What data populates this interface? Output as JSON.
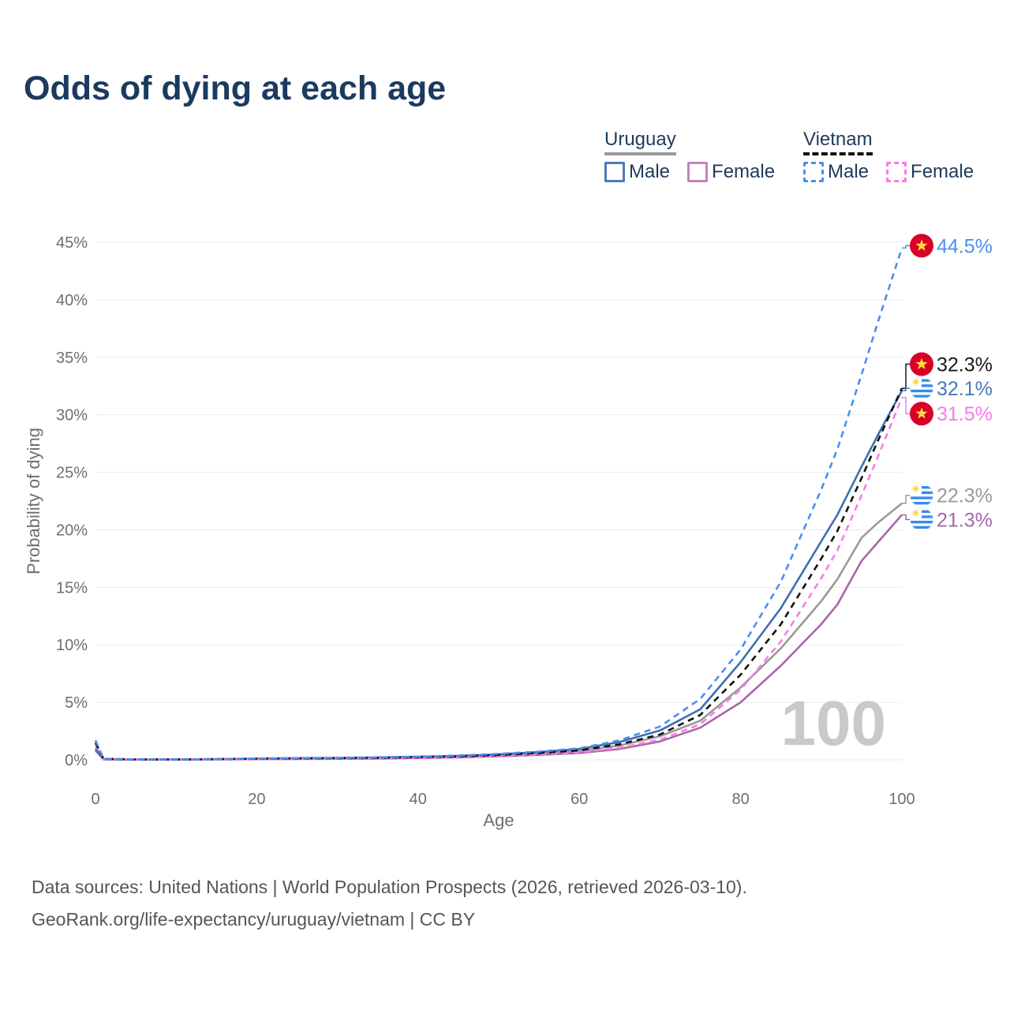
{
  "title": "Odds of dying at each age",
  "legend": {
    "groups": [
      {
        "id": "uruguay",
        "label": "Uruguay",
        "line_style": "solid",
        "line_color": "#999999",
        "items": [
          {
            "id": "uy_male",
            "label": "Male",
            "color": "#4d79bb",
            "dashed": false
          },
          {
            "id": "uy_female",
            "label": "Female",
            "color": "#c183bd",
            "dashed": false
          }
        ]
      },
      {
        "id": "vietnam",
        "label": "Vietnam",
        "line_style": "dashed",
        "line_color": "#111111",
        "items": [
          {
            "id": "vn_male",
            "label": "Male",
            "color": "#4a8ff0",
            "dashed": true
          },
          {
            "id": "vn_female",
            "label": "Female",
            "color": "#fb7be8",
            "dashed": true
          }
        ]
      }
    ]
  },
  "chart_data": {
    "type": "line",
    "title": "Odds of dying at each age",
    "xlabel": "Age",
    "ylabel": "Probability of dying",
    "xlim": [
      0,
      100
    ],
    "ylim": [
      0,
      45
    ],
    "grid": "horizontal",
    "x_ticks": [
      0,
      20,
      40,
      60,
      80,
      100
    ],
    "x_tick_labels": [
      "0",
      "20",
      "40",
      "60",
      "80",
      "100"
    ],
    "y_ticks": [
      0,
      5,
      10,
      15,
      20,
      25,
      30,
      35,
      40,
      45
    ],
    "y_tick_labels": [
      "0%",
      "5%",
      "10%",
      "15%",
      "20%",
      "25%",
      "30%",
      "35%",
      "40%",
      "45%"
    ],
    "watermark": "100",
    "x": [
      0,
      1,
      5,
      10,
      15,
      20,
      25,
      30,
      35,
      40,
      45,
      50,
      55,
      60,
      65,
      70,
      75,
      80,
      85,
      90,
      92,
      95,
      97,
      100
    ],
    "series": [
      {
        "name": "Uruguay",
        "id": "uy_both",
        "color": "#9a9a9a",
        "dash": false,
        "values": [
          0.9,
          0.05,
          0.025,
          0.025,
          0.055,
          0.09,
          0.12,
          0.14,
          0.17,
          0.22,
          0.29,
          0.4,
          0.56,
          0.78,
          1.25,
          2.05,
          3.4,
          6.3,
          9.7,
          13.8,
          15.7,
          19.3,
          20.6,
          22.3
        ]
      },
      {
        "name": "Uruguay Female",
        "id": "uy_female",
        "color": "#a668a8",
        "dash": false,
        "values": [
          0.8,
          0.05,
          0.02,
          0.02,
          0.035,
          0.055,
          0.075,
          0.09,
          0.12,
          0.16,
          0.21,
          0.3,
          0.43,
          0.6,
          0.95,
          1.6,
          2.8,
          5.0,
          8.2,
          11.8,
          13.5,
          17.3,
          18.9,
          21.3
        ]
      },
      {
        "name": "Uruguay Male",
        "id": "uy_male",
        "color": "#3e6fb4",
        "dash": false,
        "values": [
          1.0,
          0.06,
          0.03,
          0.03,
          0.07,
          0.11,
          0.15,
          0.17,
          0.21,
          0.27,
          0.35,
          0.48,
          0.68,
          0.95,
          1.55,
          2.55,
          4.4,
          8.5,
          13.2,
          19.0,
          21.3,
          25.5,
          28.2,
          32.1
        ]
      },
      {
        "name": "Vietnam Female",
        "id": "vn_female",
        "color": "#fb7be8",
        "dash": true,
        "values": [
          1.3,
          0.08,
          0.03,
          0.02,
          0.04,
          0.06,
          0.08,
          0.1,
          0.13,
          0.17,
          0.23,
          0.33,
          0.47,
          0.65,
          1.05,
          1.75,
          3.1,
          6.1,
          10.3,
          15.8,
          18.2,
          23.0,
          26.3,
          31.5
        ]
      },
      {
        "name": "Vietnam",
        "id": "vn_both",
        "color": "#111111",
        "dash": true,
        "values": [
          1.5,
          0.09,
          0.035,
          0.025,
          0.06,
          0.1,
          0.13,
          0.15,
          0.18,
          0.24,
          0.31,
          0.43,
          0.6,
          0.82,
          1.35,
          2.2,
          3.9,
          7.4,
          11.8,
          17.5,
          19.9,
          24.5,
          27.7,
          32.3
        ]
      },
      {
        "name": "Vietnam Male",
        "id": "vn_male",
        "color": "#4a8ff0",
        "dash": true,
        "values": [
          1.7,
          0.1,
          0.04,
          0.03,
          0.07,
          0.12,
          0.16,
          0.18,
          0.22,
          0.28,
          0.38,
          0.52,
          0.72,
          1.0,
          1.7,
          2.9,
          5.3,
          9.6,
          15.5,
          23.5,
          27.0,
          33.5,
          38.0,
          44.5
        ]
      }
    ],
    "annotations": [
      {
        "series": "Vietnam Male",
        "text": "44.5%",
        "flag": "vietnam",
        "color": "#4a8ff0",
        "value": 44.5,
        "label_at": 44.7
      },
      {
        "series": "Vietnam",
        "text": "32.3%",
        "flag": "vietnam",
        "color": "#1a1a1a",
        "value": 32.3,
        "label_at": 34.4
      },
      {
        "series": "Uruguay Male",
        "text": "32.1%",
        "flag": "uruguay",
        "color": "#4a77b6",
        "value": 32.1,
        "label_at": 32.3
      },
      {
        "series": "Vietnam Female",
        "text": "31.5%",
        "flag": "vietnam",
        "color": "#fa7ae8",
        "value": 31.5,
        "label_at": 30.1
      },
      {
        "series": "Uruguay",
        "text": "22.3%",
        "flag": "uruguay",
        "color": "#9a9a9a",
        "value": 22.3,
        "label_at": 23.0
      },
      {
        "series": "Uruguay Female",
        "text": "21.3%",
        "flag": "uruguay",
        "color": "#a668a8",
        "value": 21.3,
        "label_at": 20.9
      }
    ],
    "flag_colors": {
      "vietnam_red": "#d80027",
      "star_yellow": "#ffda44",
      "uruguay_blue": "#338af3",
      "sun_yellow": "#ffda44"
    }
  },
  "footer": {
    "line1": "Data sources: United Nations | World Population Prospects (2026, retrieved 2026-03-10).",
    "line2": "GeoRank.org/life-expectancy/uruguay/vietnam | CC BY"
  }
}
